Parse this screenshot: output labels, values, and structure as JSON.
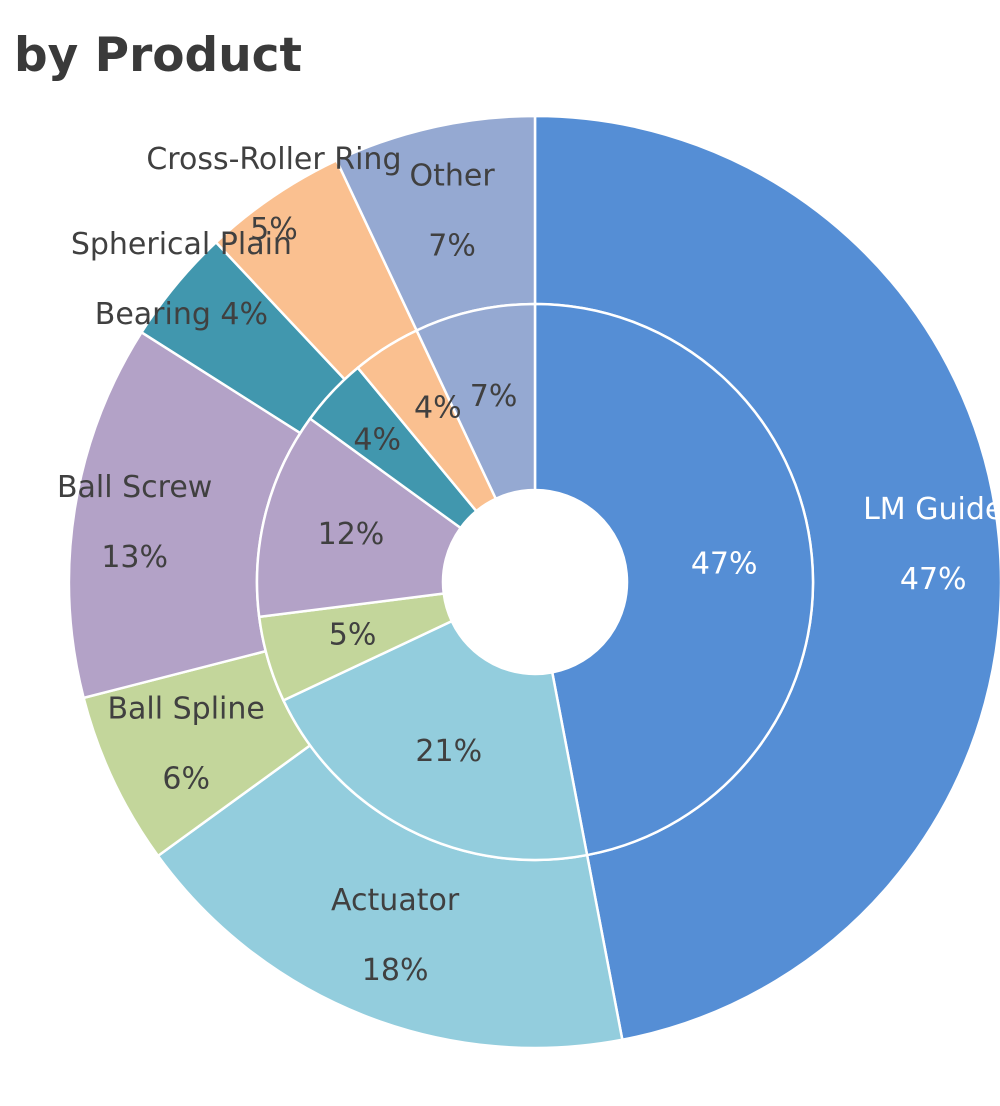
{
  "chart_data": {
    "type": "pie",
    "variant": "double-donut",
    "title": "by Product",
    "categories": [
      "LM Guide",
      "Actuator",
      "Ball Spline",
      "Ball Screw",
      "Spherical Plain Bearing",
      "Cross-Roller Ring",
      "Other"
    ],
    "series": [
      {
        "ring": "inner",
        "values": [
          47,
          21,
          5,
          12,
          4,
          4,
          7
        ]
      },
      {
        "ring": "outer",
        "values": [
          47,
          18,
          6,
          13,
          4,
          5,
          7
        ]
      }
    ],
    "inner_labels": [
      "47%",
      "21%",
      "5%",
      "12%",
      "4%",
      "4%",
      "7%"
    ],
    "outer_labels": [
      [
        "LM Guide",
        "47%"
      ],
      [
        "Actuator",
        "18%"
      ],
      [
        "Ball Spline",
        "6%"
      ],
      [
        "Ball Screw",
        "13%"
      ],
      [
        "Spherical Plain",
        "Bearing 4%"
      ],
      [
        "Cross-Roller Ring",
        "5%"
      ],
      [
        "Other",
        "7%"
      ]
    ],
    "colors": [
      "#558ed5",
      "#93cddd",
      "#c3d69b",
      "#b3a2c7",
      "#4197ae",
      "#fac090",
      "#95a9d2"
    ],
    "start_angle_deg": 0,
    "direction": "clockwise"
  }
}
